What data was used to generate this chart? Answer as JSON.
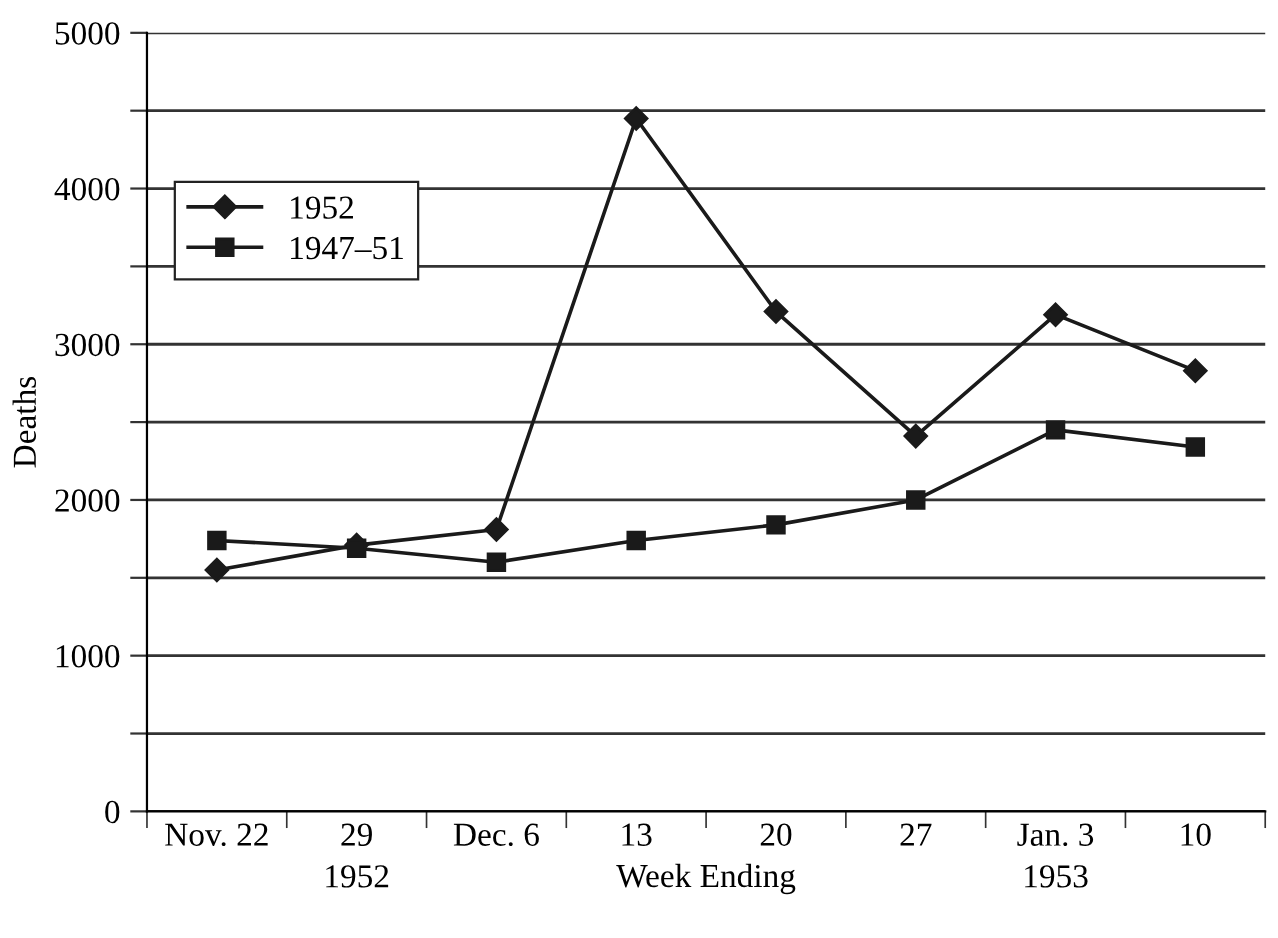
{
  "chart_data": {
    "type": "line",
    "ylabel": "Deaths",
    "xlabel": "Week Ending",
    "categories": [
      "Nov. 22",
      "29",
      "Dec. 6",
      "13",
      "20",
      "27",
      "Jan. 3",
      "10"
    ],
    "series": [
      {
        "name": "1952",
        "color": "#1a1a1a",
        "marker": "diamond",
        "values": [
          1550,
          1710,
          1810,
          4450,
          3210,
          2410,
          3190,
          2830
        ]
      },
      {
        "name": "1947–51",
        "color": "#1a1a1a",
        "marker": "square",
        "values": [
          1740,
          1690,
          1600,
          1740,
          1840,
          2000,
          2450,
          2340
        ]
      }
    ],
    "ylim": [
      0,
      5000
    ],
    "yticks": [
      0,
      {
        "value": 500,
        "label": null
      },
      1000,
      {
        "value": 1500,
        "label": null
      },
      2000,
      {
        "value": 2500,
        "label": null
      },
      3000,
      {
        "value": 3500,
        "label": null
      },
      4000,
      {
        "value": 4500,
        "label": null
      },
      5000
    ],
    "grid": "y",
    "legend": "top left",
    "line_style": "solid",
    "annotations": [
      "1952",
      "1953"
    ]
  }
}
